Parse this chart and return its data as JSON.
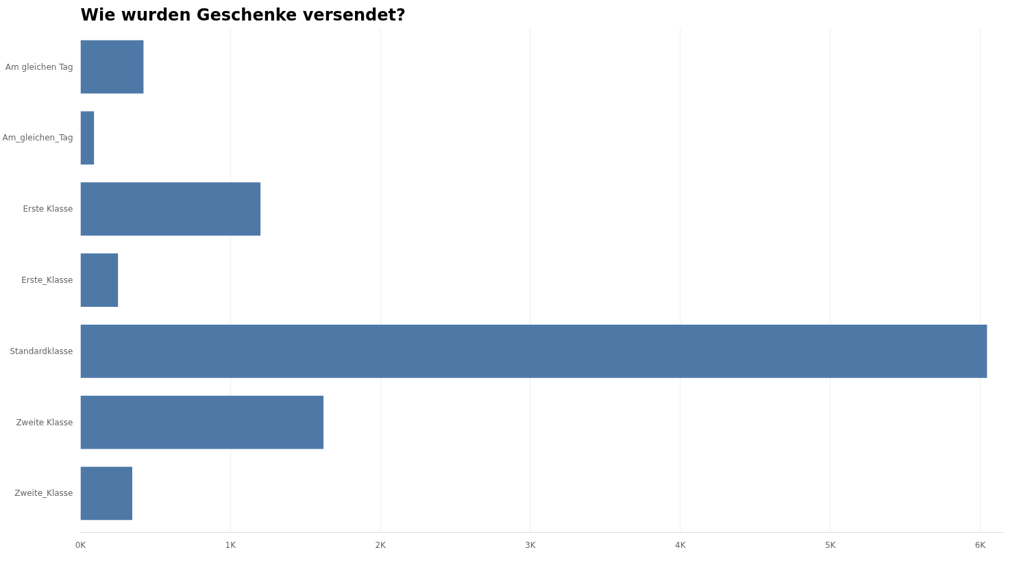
{
  "chart_data": {
    "type": "bar",
    "orientation": "horizontal",
    "title": "Wie wurden Geschenke versendet?",
    "categories": [
      "Am gleichen Tag",
      "Am_gleichen_Tag",
      "Erste Klasse",
      "Erste_Klasse",
      "Standardklasse",
      "Zweite Klasse",
      "Zweite_Klasse"
    ],
    "values": [
      420,
      90,
      1200,
      250,
      6045,
      1620,
      345
    ],
    "color": "#4e79a7",
    "xlim": [
      0,
      6160
    ],
    "xticks": [
      {
        "value": 0,
        "label": "0K"
      },
      {
        "value": 1000,
        "label": "1K"
      },
      {
        "value": 2000,
        "label": "2K"
      },
      {
        "value": 3000,
        "label": "3K"
      },
      {
        "value": 4000,
        "label": "4K"
      },
      {
        "value": 5000,
        "label": "5K"
      },
      {
        "value": 6000,
        "label": "6K"
      }
    ],
    "grid": "x"
  }
}
